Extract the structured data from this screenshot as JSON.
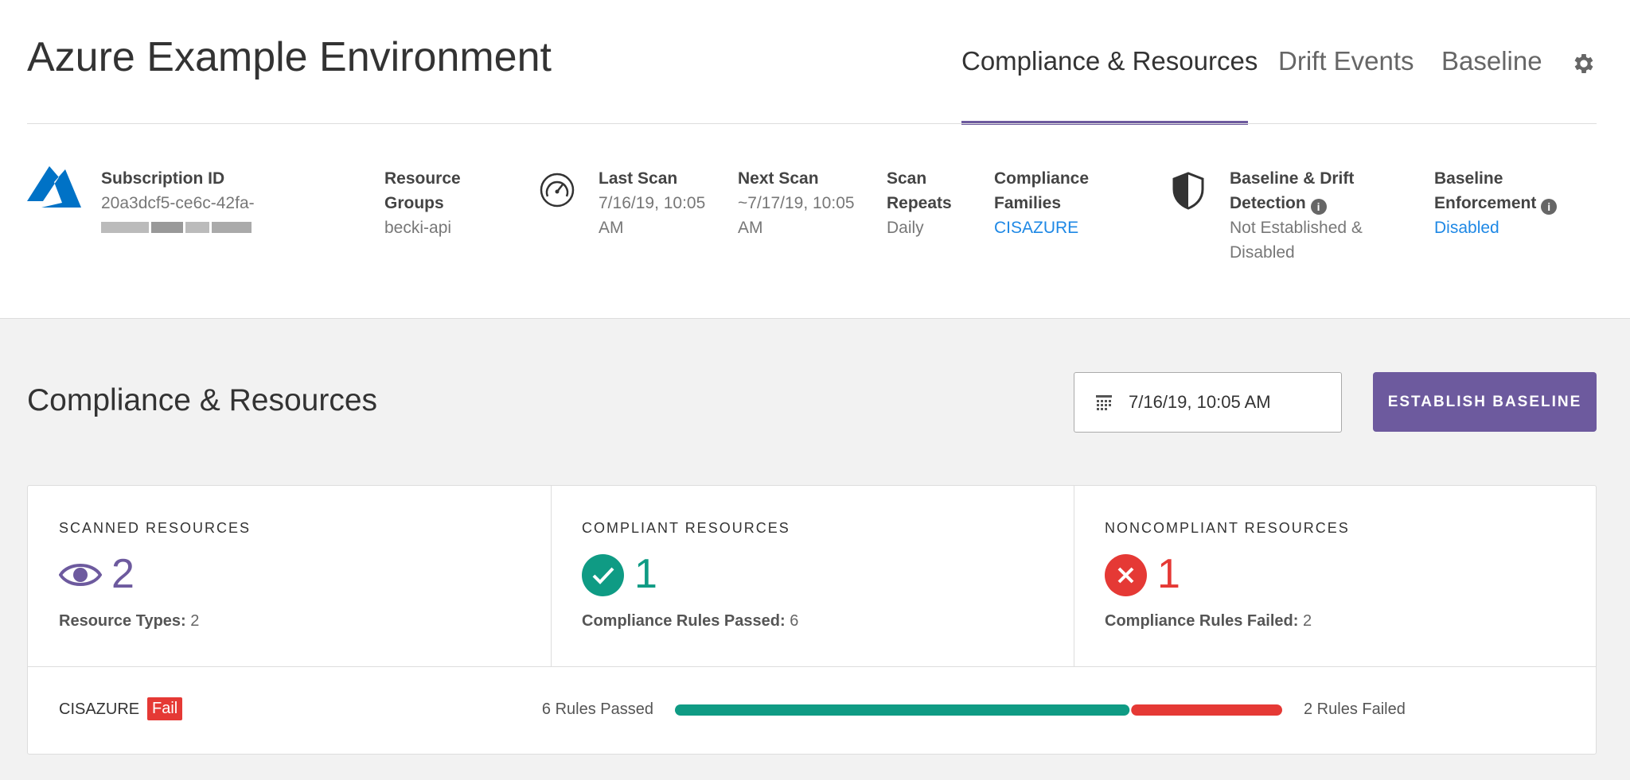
{
  "header": {
    "title": "Azure Example Environment",
    "tabs": [
      "Compliance & Resources",
      "Drift Events",
      "Baseline"
    ]
  },
  "info": {
    "subscription": {
      "label": "Subscription ID",
      "value": "20a3dcf5-ce6c-42fa-"
    },
    "resource_groups": {
      "label": "Resource Groups",
      "value": "becki-api"
    },
    "last_scan": {
      "label": "Last Scan",
      "value": "7/16/19, 10:05 AM"
    },
    "next_scan": {
      "label": "Next Scan",
      "value": "~7/17/19, 10:05 AM"
    },
    "scan_repeats": {
      "label": "Scan Repeats",
      "value": "Daily"
    },
    "compliance_families": {
      "label": "Compliance Families",
      "value": "CISAZURE"
    },
    "baseline_drift": {
      "label": "Baseline & Drift Detection",
      "value": "Not Established & Disabled"
    },
    "baseline_enforcement": {
      "label": "Baseline Enforcement",
      "value": "Disabled"
    }
  },
  "section": {
    "title": "Compliance & Resources",
    "date": "7/16/19, 10:05 AM",
    "button": "ESTABLISH BASELINE"
  },
  "cards": [
    {
      "title": "SCANNED RESOURCES",
      "count": 2,
      "detail_label": "Resource Types:",
      "detail_value": 2
    },
    {
      "title": "COMPLIANT RESOURCES",
      "count": 1,
      "detail_label": "Compliance Rules Passed:",
      "detail_value": 6
    },
    {
      "title": "NONCOMPLIANT RESOURCES",
      "count": 1,
      "detail_label": "Compliance Rules Failed:",
      "detail_value": 2
    }
  ],
  "family_row": {
    "name": "CISAZURE",
    "status": "Fail",
    "passed": {
      "value": 6,
      "label": "6 Rules Passed"
    },
    "failed": {
      "value": 2,
      "label": "2 Rules Failed"
    }
  }
}
